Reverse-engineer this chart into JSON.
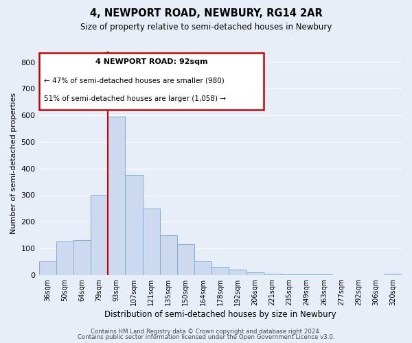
{
  "title": "4, NEWPORT ROAD, NEWBURY, RG14 2AR",
  "subtitle": "Size of property relative to semi-detached houses in Newbury",
  "xlabel": "Distribution of semi-detached houses by size in Newbury",
  "ylabel": "Number of semi-detached properties",
  "footer_line1": "Contains HM Land Registry data © Crown copyright and database right 2024.",
  "footer_line2": "Contains public sector information licensed under the Open Government Licence v3.0.",
  "bar_labels": [
    "36sqm",
    "50sqm",
    "64sqm",
    "79sqm",
    "93sqm",
    "107sqm",
    "121sqm",
    "135sqm",
    "150sqm",
    "164sqm",
    "178sqm",
    "192sqm",
    "206sqm",
    "221sqm",
    "235sqm",
    "249sqm",
    "263sqm",
    "277sqm",
    "292sqm",
    "306sqm",
    "320sqm"
  ],
  "bar_values": [
    50,
    125,
    130,
    300,
    595,
    375,
    250,
    150,
    115,
    50,
    30,
    20,
    10,
    5,
    2,
    1,
    1,
    0,
    0,
    0,
    5
  ],
  "bar_color": "#ccd9ee",
  "bar_edge_color": "#7bafd4",
  "property_line_index": 4,
  "property_line_label": "4 NEWPORT ROAD: 92sqm",
  "annotation_line1": "← 47% of semi-detached houses are smaller (980)",
  "annotation_line2": "51% of semi-detached houses are larger (1,058) →",
  "annotation_box_color": "#ffffff",
  "annotation_box_edge": "#cc0000",
  "line_color": "#cc0000",
  "ylim": [
    0,
    840
  ],
  "yticks": [
    0,
    100,
    200,
    300,
    400,
    500,
    600,
    700,
    800
  ],
  "background_color": "#e8eef8",
  "plot_background": "#e8eef8",
  "grid_color": "#ffffff"
}
